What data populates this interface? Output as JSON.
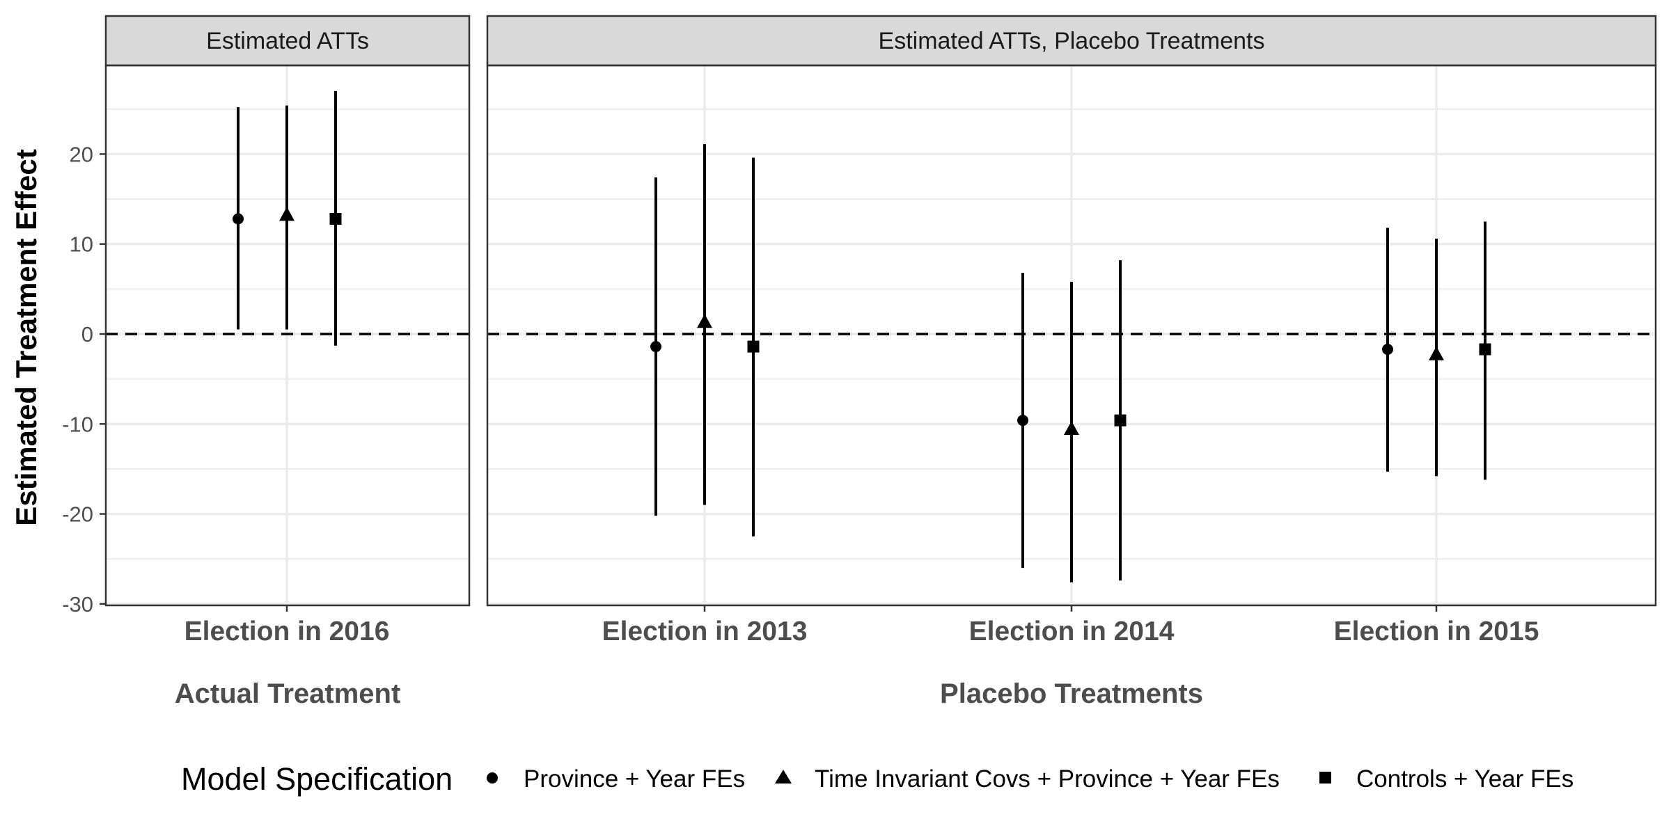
{
  "chart_data": {
    "type": "scatter",
    "ylabel": "Estimated Treatment Effect",
    "ylim": [
      -30,
      30
    ],
    "yticks": [
      -30,
      -20,
      -10,
      0,
      10,
      20
    ],
    "reference_line": {
      "y": 0,
      "style": "dashed"
    },
    "grid": true,
    "legend_position": "bottom",
    "legend_title": "Model Specification",
    "series": [
      {
        "name": "Province + Year FEs",
        "shape": "circle"
      },
      {
        "name": "Time Invariant Covs + Province + Year FEs",
        "shape": "triangle"
      },
      {
        "name": "Controls + Year FEs",
        "shape": "square"
      }
    ],
    "panels": [
      {
        "strip": "Estimated ATTs",
        "xlabel": "Actual Treatment",
        "categories": [
          "Election in 2016"
        ],
        "estimates": [
          [
            {
              "y": 12.8,
              "lo": 0.5,
              "hi": 25.2
            }
          ],
          [
            {
              "y": 13.2,
              "lo": 0.5,
              "hi": 25.4
            }
          ],
          [
            {
              "y": 12.8,
              "lo": -1.3,
              "hi": 27.0
            }
          ]
        ]
      },
      {
        "strip": "Estimated ATTs, Placebo Treatments",
        "xlabel": "Placebo Treatments",
        "categories": [
          "Election in 2013",
          "Election in 2014",
          "Election in 2015"
        ],
        "estimates": [
          [
            {
              "y": -1.4,
              "lo": -20.2,
              "hi": 17.4
            },
            {
              "y": -9.6,
              "lo": -26.0,
              "hi": 6.8
            },
            {
              "y": -1.7,
              "lo": -15.3,
              "hi": 11.8
            }
          ],
          [
            {
              "y": 1.3,
              "lo": -19.0,
              "hi": 21.1
            },
            {
              "y": -10.6,
              "lo": -27.6,
              "hi": 5.8
            },
            {
              "y": -2.3,
              "lo": -15.8,
              "hi": 10.6
            }
          ],
          [
            {
              "y": -1.4,
              "lo": -22.5,
              "hi": 19.6
            },
            {
              "y": -9.6,
              "lo": -27.4,
              "hi": 8.2
            },
            {
              "y": -1.7,
              "lo": -16.2,
              "hi": 12.5
            }
          ]
        ]
      }
    ]
  },
  "colors": {
    "ink": "#000000",
    "grid": "#ebebeb",
    "strip_bg": "#d9d9d9",
    "panel_border": "#333333",
    "tick_text": "#4d4d4d"
  }
}
